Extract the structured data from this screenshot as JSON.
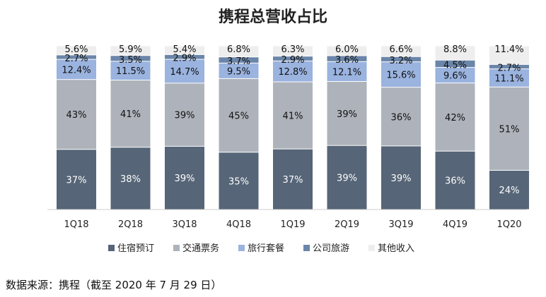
{
  "chart_data": {
    "type": "bar",
    "stacked": true,
    "title": "携程总营收占比",
    "categories": [
      "1Q18",
      "2Q18",
      "3Q18",
      "4Q18",
      "1Q19",
      "2Q19",
      "3Q19",
      "4Q19",
      "1Q20"
    ],
    "series": [
      {
        "name": "住宿预订",
        "color": "#566577",
        "values": [
          37,
          38,
          39,
          35,
          37,
          39,
          39,
          36,
          24
        ],
        "labels": [
          "37%",
          "38%",
          "39%",
          "35%",
          "37%",
          "39%",
          "39%",
          "36%",
          "24%"
        ]
      },
      {
        "name": "交通票务",
        "color": "#aeb3bb",
        "values": [
          43,
          41,
          39,
          45,
          41,
          39,
          36,
          42,
          51
        ],
        "labels": [
          "43%",
          "41%",
          "39%",
          "45%",
          "41%",
          "39%",
          "36%",
          "42%",
          "51%"
        ]
      },
      {
        "name": "旅行套餐",
        "color": "#9ab3df",
        "values": [
          12.4,
          11.5,
          14.7,
          9.5,
          12.8,
          12.1,
          15.6,
          9.6,
          11.1
        ],
        "labels": [
          "12.4%",
          "11.5%",
          "14.7%",
          "9.5%",
          "12.8%",
          "12.1%",
          "15.6%",
          "9.6%",
          "11.1%"
        ]
      },
      {
        "name": "公司旅游",
        "color": "#6b86a9",
        "values": [
          2.7,
          3.5,
          2.9,
          3.7,
          2.9,
          3.6,
          3.2,
          4.5,
          2.7
        ],
        "labels": [
          "2.7%",
          "3.5%",
          "2.9%",
          "3.7%",
          "2.9%",
          "3.6%",
          "3.2%",
          "4.5%",
          "2.7%"
        ]
      },
      {
        "name": "其他收入",
        "color": "#eeeeee",
        "values": [
          5.6,
          5.9,
          5.4,
          6.8,
          6.3,
          6.0,
          6.6,
          8.8,
          11.4
        ],
        "labels": [
          "5.6%",
          "5.9%",
          "5.4%",
          "6.8%",
          "6.3%",
          "6.0%",
          "6.6%",
          "8.8%",
          "11.4%"
        ]
      }
    ],
    "ylim": [
      0,
      100
    ],
    "xlabel": "",
    "ylabel": "",
    "legend": "bottom",
    "grid": false
  },
  "source_note": "数据来源：携程（截至 2020 年 7 月 29 日）"
}
